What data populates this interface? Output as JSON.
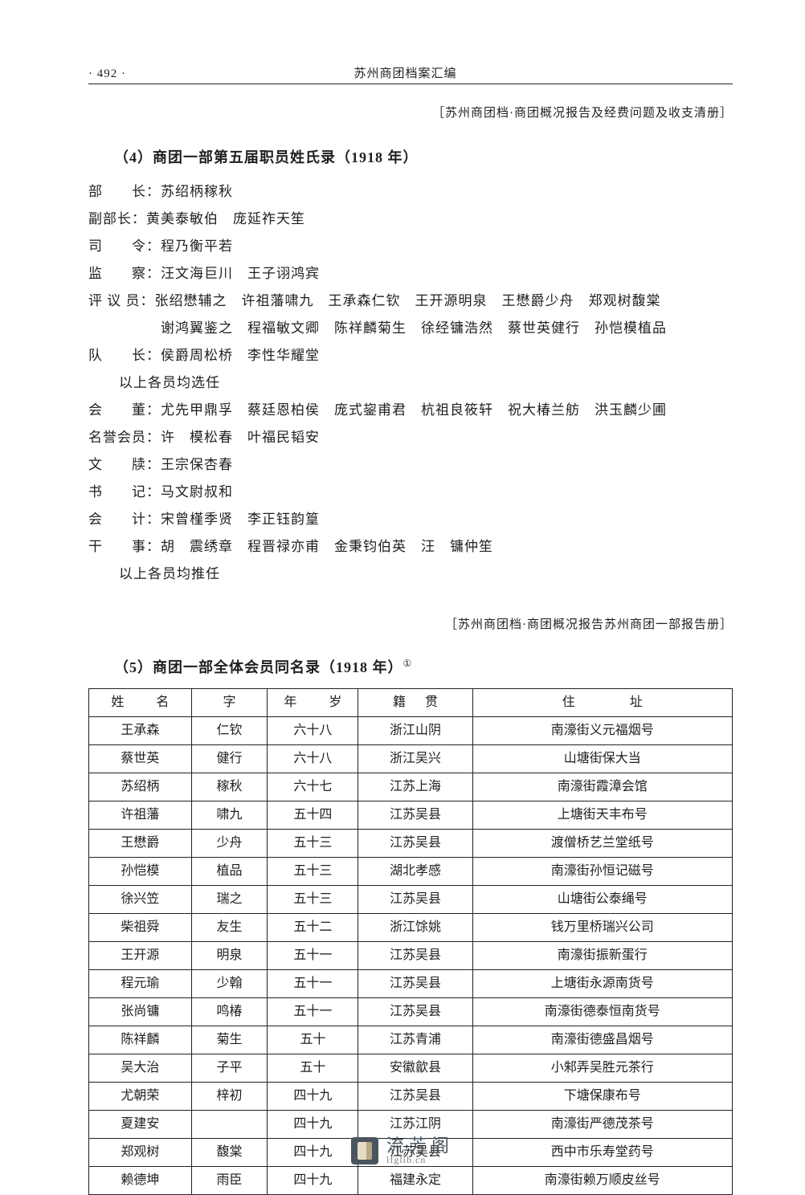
{
  "page_number": "·  492  ·",
  "book_title": "苏州商团档案汇编",
  "source_note_1": "［苏州商团档·商团概况报告及经费问题及收支清册］",
  "source_note_2": "［苏州商团档·商团概况报告苏州商团一部报告册］",
  "section4_title": "（4）商团一部第五届职员姓氏录（1918 年）",
  "section5_title": "（5）商团一部全体会员同名录（1918 年）",
  "section5_sup": "①",
  "roster": [
    "部　　长：苏绍柄稼秋",
    "副部长：黄美泰敏伯　庞延祚天笙",
    "司　　令：程乃衡平若",
    "监　　察：汪文海巨川　王子诩鸿宾",
    "评 议 员：张绍懋辅之　许祖藩啸九　王承森仁钦　王开源明泉　王懋爵少舟　郑观树馥棠",
    "　　　　　谢鸿翼鉴之　程福敏文卿　陈祥麟菊生　徐经镛浩然　蔡世英健行　孙恺模植品",
    "队　　长：侯爵周松桥　李性华耀堂"
  ],
  "elected_note": "以上各员均选任",
  "roster2": [
    "会　　董：尤先甲鼎孚　蔡廷恩柏侯　庞式鋆甫君　杭祖良筱轩　祝大椿兰舫　洪玉麟少圃",
    "名誉会员：许　模松春　叶福民韬安",
    "文　　牍：王宗保杏春",
    "书　　记：马文尉叔和",
    "会　　计：宋曾槿季贤　李正钰韵篁",
    "干　　事：胡　震绣章　程晋禄亦甫　金秉钧伯英　汪　镛仲笙"
  ],
  "recommended_note": "以上各员均推任",
  "table": {
    "columns": [
      "姓　名",
      "字",
      "年　岁",
      "籍　贯",
      "住　　址"
    ],
    "col_widths": [
      "16%",
      "12%",
      "13%",
      "18%",
      "41%"
    ],
    "rows": [
      [
        "王承森",
        "仁钦",
        "六十八",
        "浙江山阴",
        "南濠街义元福烟号"
      ],
      [
        "蔡世英",
        "健行",
        "六十八",
        "浙江吴兴",
        "山塘街保大当"
      ],
      [
        "苏绍柄",
        "稼秋",
        "六十七",
        "江苏上海",
        "南濠街霞漳会馆"
      ],
      [
        "许祖藩",
        "啸九",
        "五十四",
        "江苏吴县",
        "上塘街天丰布号"
      ],
      [
        "王懋爵",
        "少舟",
        "五十三",
        "江苏吴县",
        "渡僧桥艺兰堂纸号"
      ],
      [
        "孙恺模",
        "植品",
        "五十三",
        "湖北孝感",
        "南濠街孙恒记磁号"
      ],
      [
        "徐兴笠",
        "瑞之",
        "五十三",
        "江苏吴县",
        "山塘街公泰绳号"
      ],
      [
        "柴祖舜",
        "友生",
        "五十二",
        "浙江馀姚",
        "钱万里桥瑞兴公司"
      ],
      [
        "王开源",
        "明泉",
        "五十一",
        "江苏吴县",
        "南濠街振新蛋行"
      ],
      [
        "程元瑜",
        "少翰",
        "五十一",
        "江苏吴县",
        "上塘街永源南货号"
      ],
      [
        "张尚镛",
        "鸣椿",
        "五十一",
        "江苏吴县",
        "南濠街德泰恒南货号"
      ],
      [
        "陈祥麟",
        "菊生",
        "五十",
        "江苏青浦",
        "南濠街德盛昌烟号"
      ],
      [
        "吴大治",
        "子平",
        "五十",
        "安徽歙县",
        "小邾弄吴胜元茶行"
      ],
      [
        "尤朝荣",
        "梓初",
        "四十九",
        "江苏吴县",
        "下塘保康布号"
      ],
      [
        "夏建安",
        "",
        "四十九",
        "江苏江阴",
        "南濠街严德茂茶号"
      ],
      [
        "郑观树",
        "馥棠",
        "四十九",
        "江苏吴县",
        "西中市乐寿堂药号"
      ],
      [
        "赖德坤",
        "雨臣",
        "四十九",
        "福建永定",
        "南濠街赖万顺皮丝号"
      ]
    ]
  },
  "watermark": {
    "cn": "流芳阁",
    "url": "lfglib.cn"
  },
  "colors": {
    "text": "#1f1f1f",
    "rule": "#222",
    "bg": "#ffffff"
  }
}
